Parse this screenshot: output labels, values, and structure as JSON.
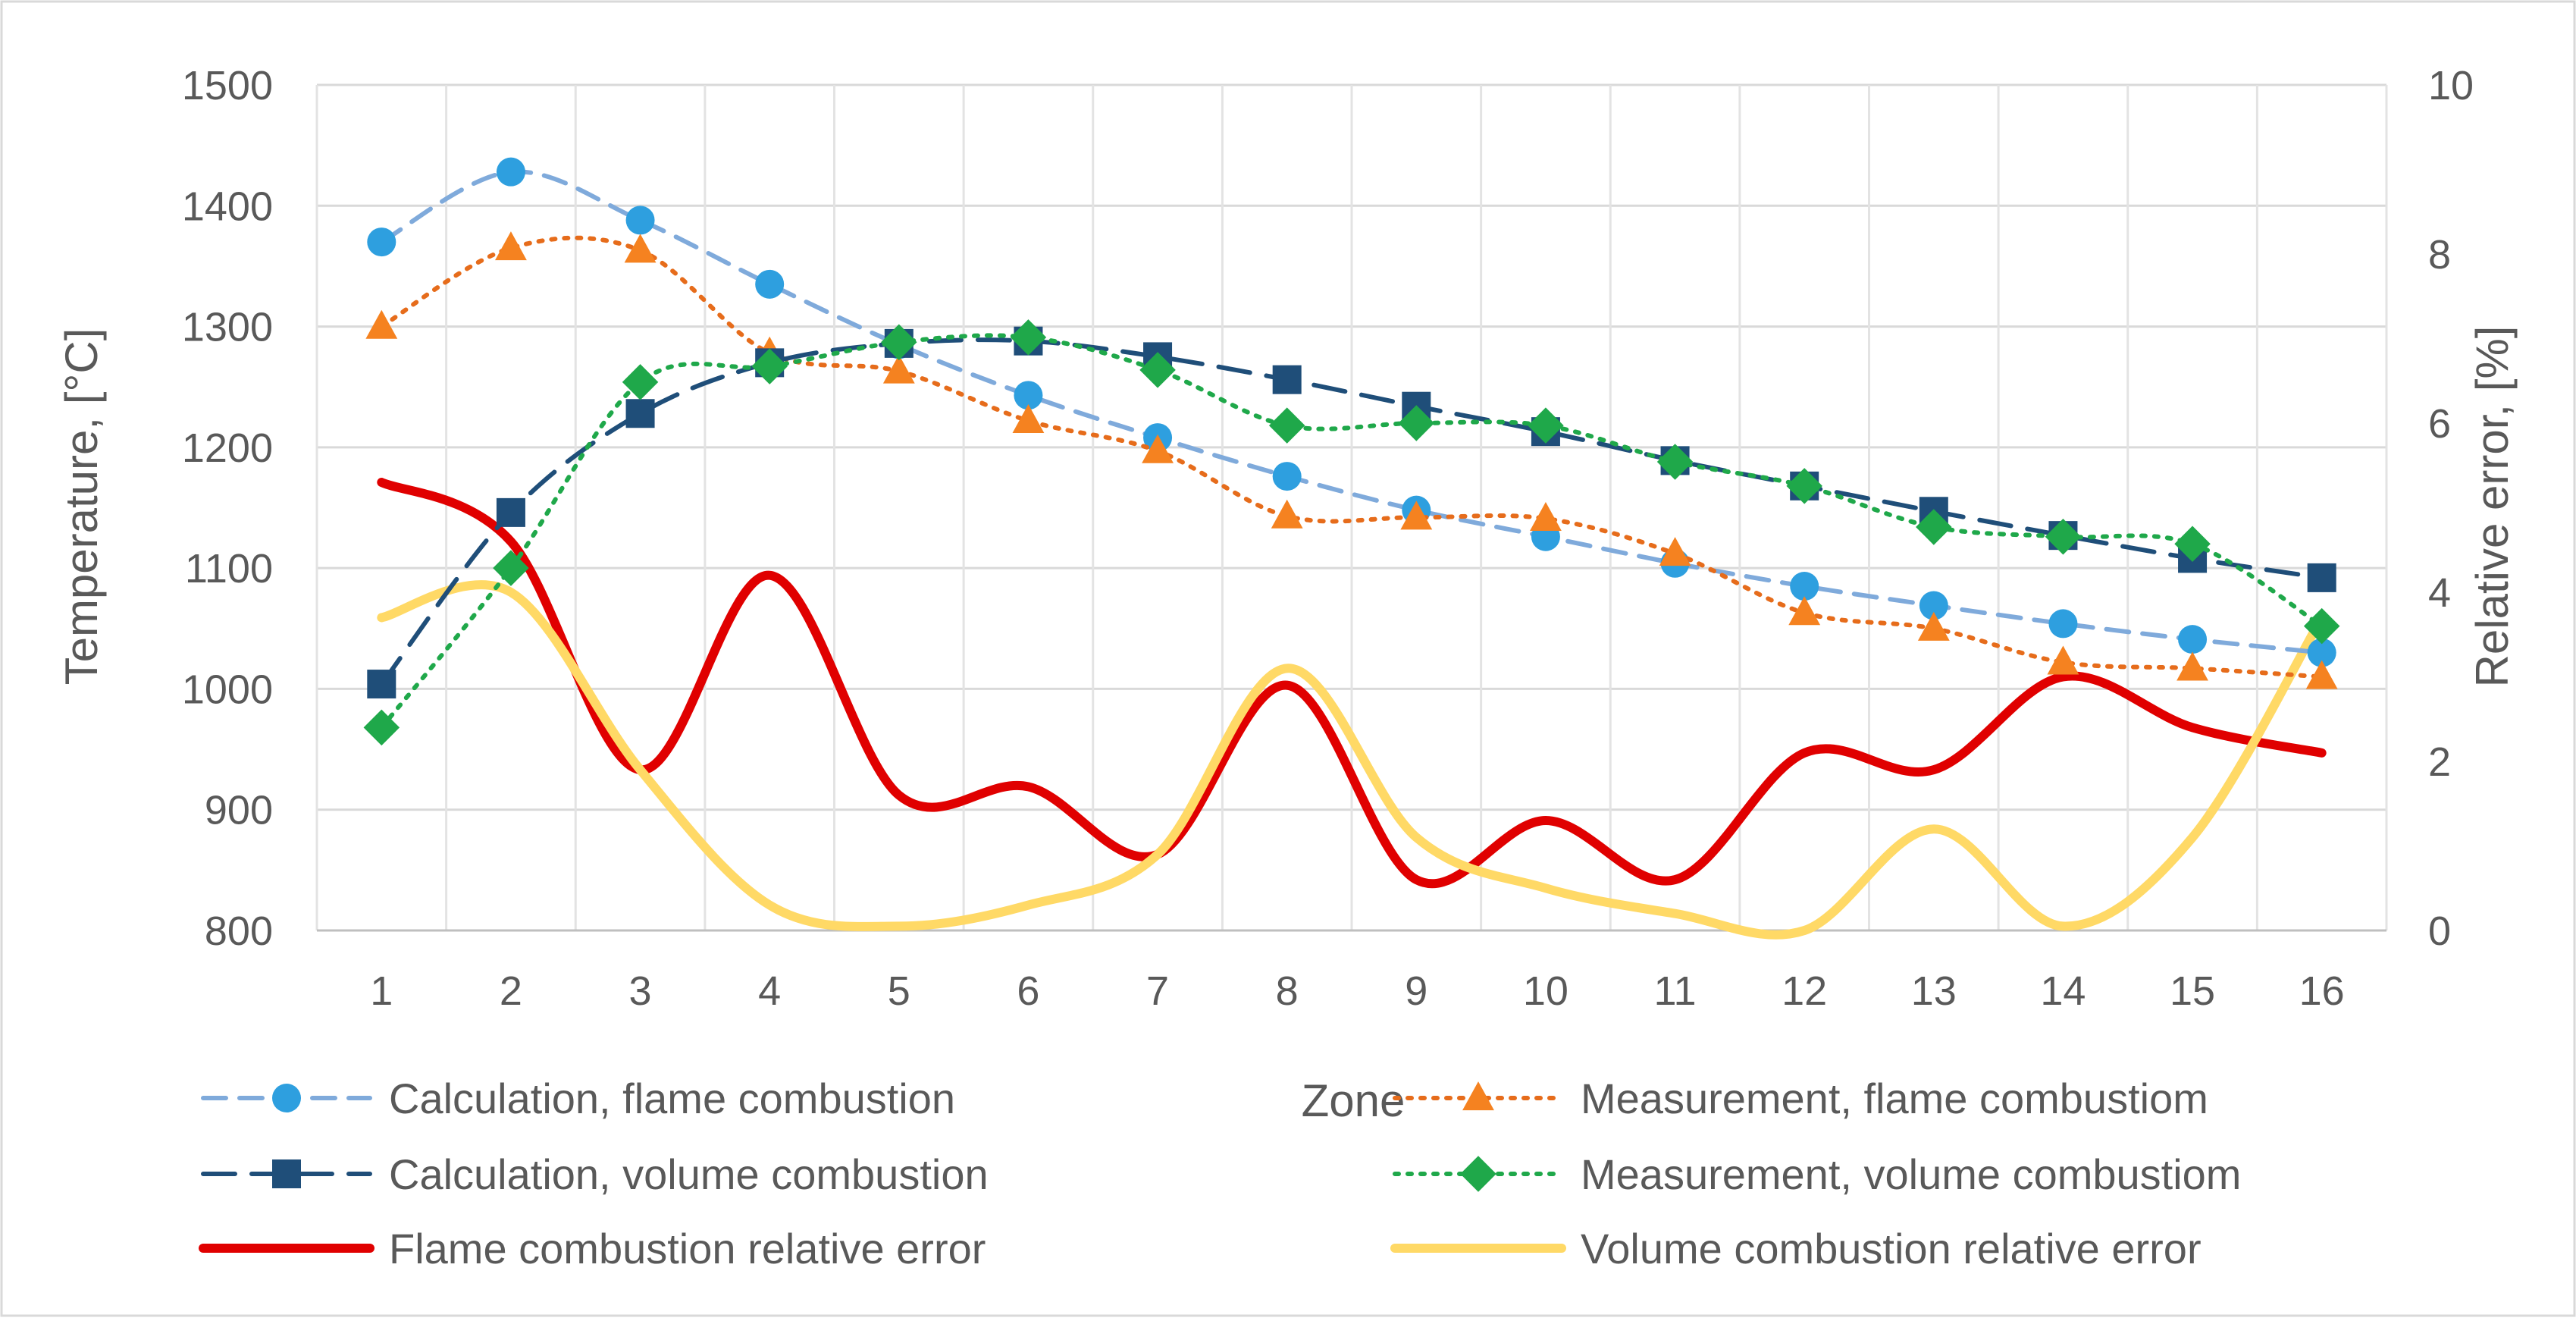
{
  "chart_data": {
    "type": "line",
    "title": "",
    "xlabel": "Zone",
    "ylabel": "Temperature, [°C]",
    "y2label": "Relative error, [%]",
    "categories": [
      "1",
      "2",
      "3",
      "4",
      "5",
      "6",
      "7",
      "8",
      "9",
      "10",
      "11",
      "12",
      "13",
      "14",
      "15",
      "16"
    ],
    "ylim": [
      800,
      1500
    ],
    "yticks": [
      "800",
      "900",
      "1000",
      "1100",
      "1200",
      "1300",
      "1400",
      "1500"
    ],
    "y2lim": [
      0,
      10
    ],
    "y2ticks": [
      "0",
      "2",
      "4",
      "6",
      "8",
      "10"
    ],
    "grid": true,
    "legend_position": "bottom",
    "series": [
      {
        "name": "Calculation, flame combustion",
        "axis": "left",
        "color": "#7faadb",
        "dash": "dashed",
        "marker": "circle",
        "marker_color": "#2e9fdf",
        "values": [
          1370,
          1428,
          1388,
          1335,
          1285,
          1243,
          1208,
          1176,
          1148,
          1126,
          1104,
          1085,
          1069,
          1054,
          1041,
          1030
        ]
      },
      {
        "name": "Measurement, flame combustiom",
        "axis": "left",
        "color": "#e66c1b",
        "dash": "dotted",
        "marker": "triangle",
        "marker_color": "#f58220",
        "values": [
          1300,
          1365,
          1363,
          1278,
          1263,
          1222,
          1197,
          1143,
          1142,
          1141,
          1112,
          1063,
          1050,
          1022,
          1017,
          1010
        ]
      },
      {
        "name": "Calculation, volume combustion",
        "axis": "left",
        "color": "#1f4e79",
        "dash": "longdash",
        "marker": "square",
        "marker_color": "#1f4e79",
        "values": [
          1004,
          1146,
          1228,
          1270,
          1286,
          1288,
          1275,
          1256,
          1234,
          1213,
          1189,
          1168,
          1147,
          1127,
          1108,
          1092
        ]
      },
      {
        "name": "Measurement, volume combustiom",
        "axis": "left",
        "color": "#1fa84a",
        "dash": "dotted",
        "marker": "diamond",
        "marker_color": "#1fa84a",
        "values": [
          968,
          1100,
          1254,
          1267,
          1287,
          1291,
          1264,
          1218,
          1220,
          1218,
          1188,
          1168,
          1134,
          1126,
          1120,
          1052
        ]
      },
      {
        "name": "Flame combustion relative error",
        "axis": "right",
        "color": "#e00000",
        "dash": "solid",
        "marker": "none",
        "values": [
          5.3,
          4.6,
          1.9,
          4.2,
          1.6,
          1.7,
          0.9,
          2.9,
          0.6,
          1.3,
          0.6,
          2.1,
          1.9,
          3.0,
          2.4,
          2.1
        ]
      },
      {
        "name": "Volume combustion relative error",
        "axis": "right",
        "color": "#ffd966",
        "dash": "solid",
        "marker": "none",
        "values": [
          3.7,
          4.0,
          1.9,
          0.3,
          0.05,
          0.3,
          0.9,
          3.1,
          1.1,
          0.5,
          0.2,
          0.0,
          1.2,
          0.05,
          1.1,
          3.7
        ]
      }
    ]
  }
}
